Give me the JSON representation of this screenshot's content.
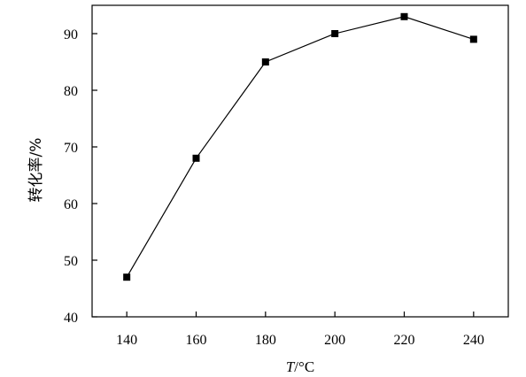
{
  "chart_data": {
    "type": "line",
    "title": "",
    "xlabel": "T/°C",
    "xlabel_var": "T",
    "xlabel_unit": "/°C",
    "ylabel": "转化率/%",
    "x": [
      140,
      160,
      180,
      200,
      220,
      240
    ],
    "series": [
      {
        "values": [
          47,
          68,
          85,
          90,
          93,
          89
        ]
      }
    ],
    "xlim": [
      130,
      250
    ],
    "ylim": [
      40,
      95
    ],
    "xticks": [
      140,
      160,
      180,
      200,
      220,
      240
    ],
    "yticks": [
      40,
      50,
      60,
      70,
      80,
      90
    ],
    "grid": false,
    "legend": "none",
    "marker": "square",
    "colors": {
      "line": "#000000",
      "marker": "#000000",
      "axis": "#000000"
    }
  }
}
